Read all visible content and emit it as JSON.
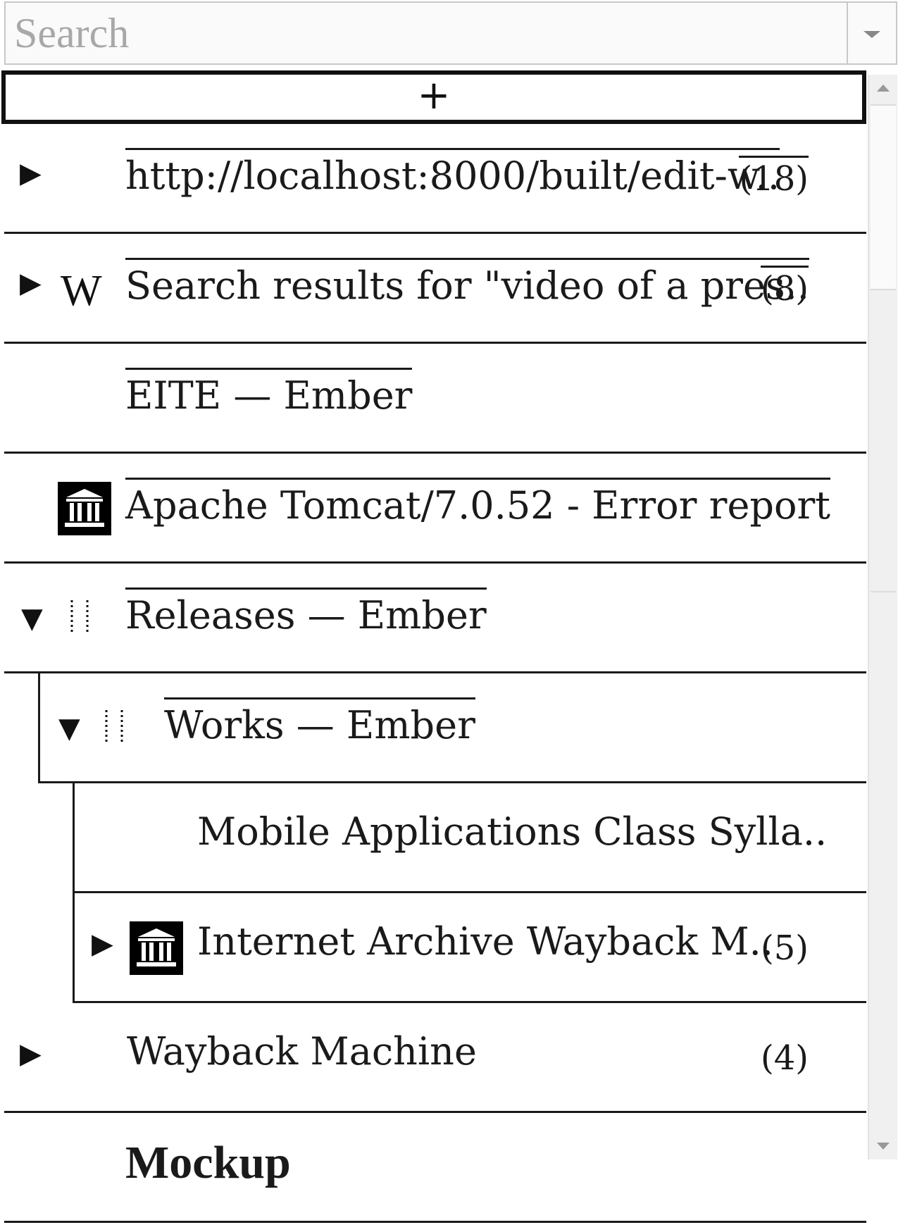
{
  "search": {
    "placeholder": "Search"
  },
  "add_button": {
    "label": "+"
  },
  "rows": [
    {
      "title": "http://localhost:8000/built/edit-w..",
      "count": "(18)",
      "count_overlined": true,
      "expand": "collapsed",
      "icon": null
    },
    {
      "title": "Search results for \"video of a pres..",
      "count": "(8)",
      "count_overlined": true,
      "expand": "collapsed",
      "icon": "wikipedia-icon",
      "icon_glyph": "W"
    },
    {
      "title": "EITE — Ember",
      "count": "",
      "expand": null,
      "icon": null
    },
    {
      "title": "Apache Tomcat/7.0.52 - Error report",
      "count": "",
      "expand": null,
      "icon": "internet-archive-icon"
    },
    {
      "title": "Releases — Ember",
      "count": "",
      "expand": "expanded",
      "icon": "dotted-lines-icon"
    },
    {
      "title": "Works — Ember",
      "count": "",
      "expand": "expanded",
      "icon": "dotted-lines-icon"
    },
    {
      "title": "Mobile Applications Class Sylla..",
      "count": "",
      "expand": null,
      "icon": null
    },
    {
      "title": "Internet Archive Wayback M..",
      "count": "(5)",
      "count_overlined": false,
      "expand": "collapsed",
      "icon": "internet-archive-icon"
    },
    {
      "title": "Wayback Machine",
      "count": "(4)",
      "count_overlined": false,
      "expand": "collapsed",
      "icon": null
    },
    {
      "title": "Mockup",
      "count": "",
      "expand": null,
      "icon": null
    }
  ],
  "glyphs": {
    "collapsed": "▶",
    "expanded": "▼"
  }
}
